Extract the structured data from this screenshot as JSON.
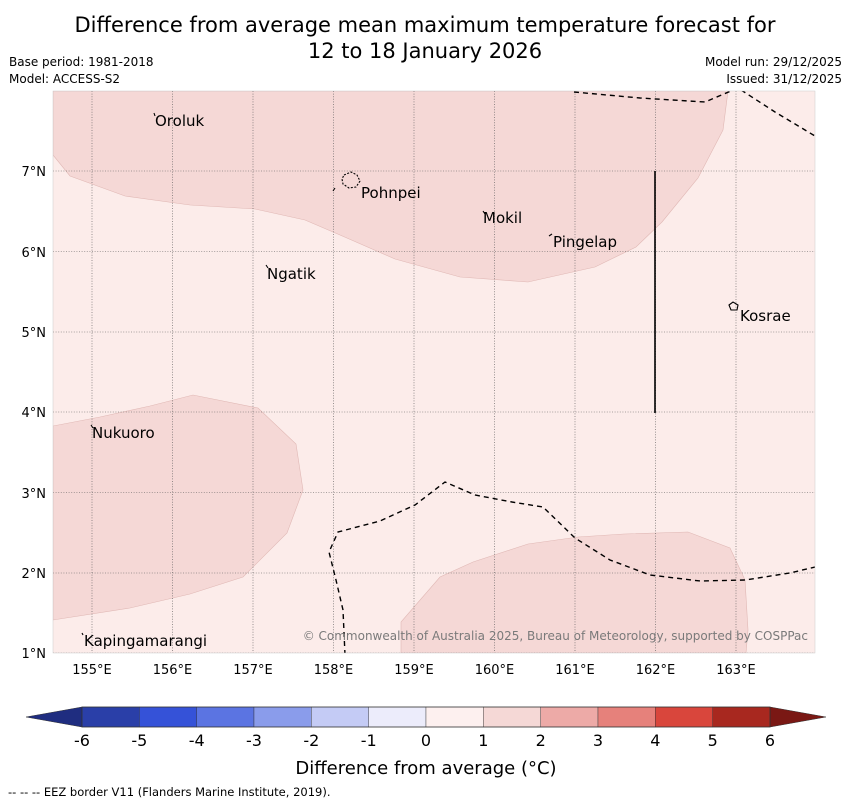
{
  "title_line1": "Difference from average mean maximum temperature forecast for",
  "title_line2": "12 to 18 January 2026",
  "base_period": "Base period: 1981-2018",
  "model": "Model: ACCESS-S2",
  "model_run": "Model run: 29/12/2025",
  "issued": "Issued: 31/12/2025",
  "places": {
    "oroluk": "Oroluk",
    "pohnpei": "Pohnpei",
    "mokil": "Mokil",
    "pingelap": "Pingelap",
    "ngatik": "Ngatik",
    "kosrae": "Kosrae",
    "nukuoro": "Nukuoro",
    "kapingamarangi": "Kapingamarangi"
  },
  "lat_labels": [
    "7°N",
    "6°N",
    "5°N",
    "4°N",
    "3°N",
    "2°N",
    "1°N"
  ],
  "lon_labels": [
    "155°E",
    "156°E",
    "157°E",
    "158°E",
    "159°E",
    "160°E",
    "161°E",
    "162°E",
    "163°E"
  ],
  "copyright": "© Commonwealth of Australia 2025, Bureau of Meteorology, supported by COSPPac",
  "colorbar": {
    "labels": [
      "-6",
      "-5",
      "-4",
      "-3",
      "-2",
      "-1",
      "0",
      "1",
      "2",
      "3",
      "4",
      "5",
      "6"
    ],
    "title": "Difference from average (°C)",
    "colors": [
      "#2a3fa8",
      "#3552d8",
      "#5b74e2",
      "#8a9ceb",
      "#c4cbf5",
      "#ececfb",
      "#fdf0ef",
      "#f5d8d6",
      "#edaaa7",
      "#e6817b",
      "#d9463c",
      "#a8281f"
    ],
    "low_end_color": "#1f2d80",
    "high_end_color": "#7a1814"
  },
  "footer": "--  --  -- EEZ border V11 (Flanders Marine Institute, 2019).",
  "colors": {
    "background_anomaly": "#fcecea",
    "anomaly_1_2": "#f5d8d6"
  }
}
